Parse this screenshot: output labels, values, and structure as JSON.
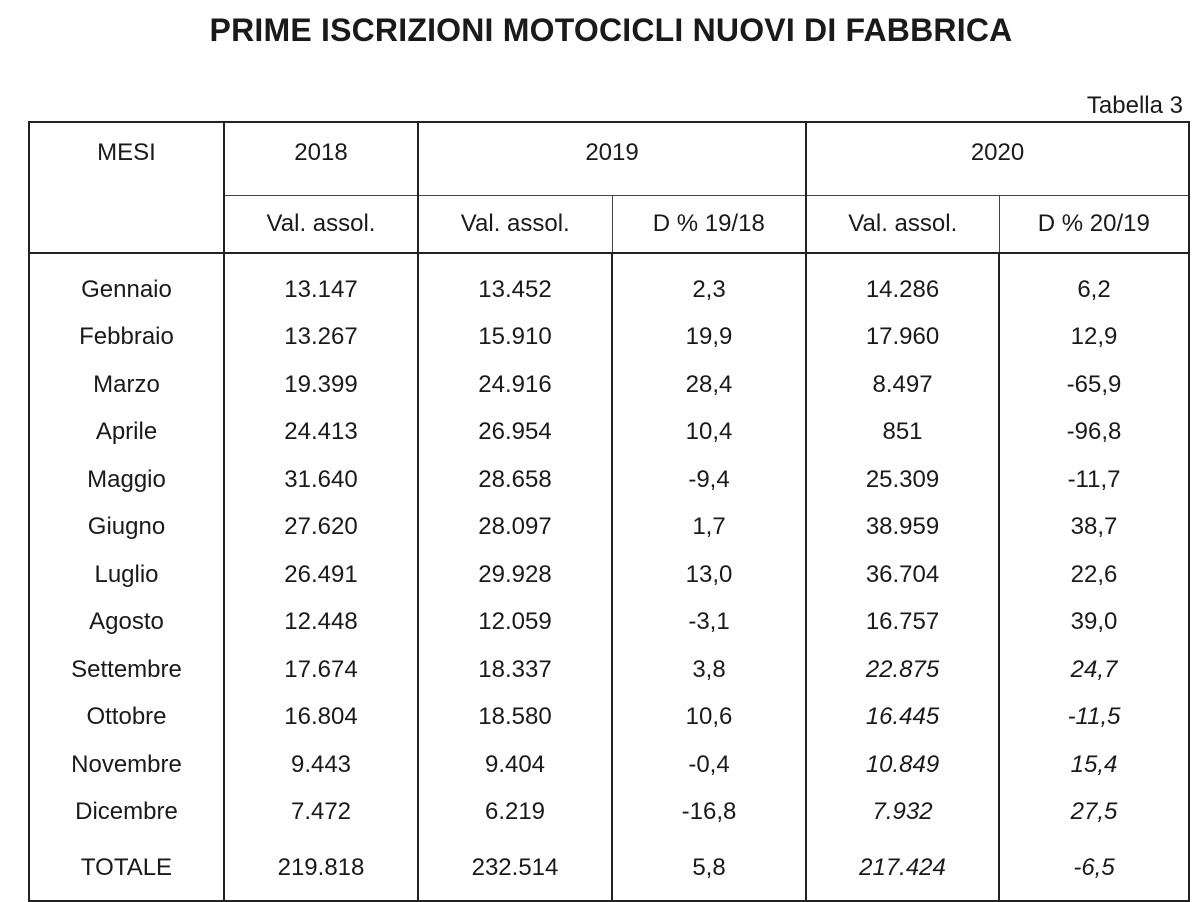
{
  "title": "PRIME ISCRIZIONI MOTOCICLI NUOVI DI FABBRICA",
  "table_label": "Tabella 3",
  "header": {
    "mesi": "MESI",
    "y2018": "2018",
    "y2019": "2019",
    "y2020": "2020",
    "val_2018": "Val. assol.",
    "val_2019": "Val. assol.",
    "delta_19_18": "D % 19/18",
    "val_2020": "Val. assol.",
    "delta_20_19": "D % 20/19"
  },
  "rows": [
    {
      "mese": "Gennaio",
      "v2018": "13.147",
      "v2019": "13.452",
      "d1918": "2,3",
      "v2020": "14.286",
      "d2019": "6,2"
    },
    {
      "mese": "Febbraio",
      "v2018": "13.267",
      "v2019": "15.910",
      "d1918": "19,9",
      "v2020": "17.960",
      "d2019": "12,9"
    },
    {
      "mese": "Marzo",
      "v2018": "19.399",
      "v2019": "24.916",
      "d1918": "28,4",
      "v2020": "8.497",
      "d2019": "-65,9"
    },
    {
      "mese": "Aprile",
      "v2018": "24.413",
      "v2019": "26.954",
      "d1918": "10,4",
      "v2020": "851",
      "d2019": "-96,8"
    },
    {
      "mese": "Maggio",
      "v2018": "31.640",
      "v2019": "28.658",
      "d1918": "-9,4",
      "v2020": "25.309",
      "d2019": "-11,7"
    },
    {
      "mese": "Giugno",
      "v2018": "27.620",
      "v2019": "28.097",
      "d1918": "1,7",
      "v2020": "38.959",
      "d2019": "38,7"
    },
    {
      "mese": "Luglio",
      "v2018": "26.491",
      "v2019": "29.928",
      "d1918": "13,0",
      "v2020": "36.704",
      "d2019": "22,6"
    },
    {
      "mese": "Agosto",
      "v2018": "12.448",
      "v2019": "12.059",
      "d1918": "-3,1",
      "v2020": "16.757",
      "d2019": "39,0"
    },
    {
      "mese": "Settembre",
      "v2018": "17.674",
      "v2019": "18.337",
      "d1918": "3,8",
      "v2020": "22.875",
      "d2019": "24,7"
    },
    {
      "mese": "Ottobre",
      "v2018": "16.804",
      "v2019": "18.580",
      "d1918": "10,6",
      "v2020": "16.445",
      "d2019": "-11,5"
    },
    {
      "mese": "Novembre",
      "v2018": "9.443",
      "v2019": "9.404",
      "d1918": "-0,4",
      "v2020": "10.849",
      "d2019": "15,4"
    },
    {
      "mese": "Dicembre",
      "v2018": "7.472",
      "v2019": "6.219",
      "d1918": "-16,8",
      "v2020": "7.932",
      "d2019": "27,5"
    }
  ],
  "total": {
    "mese": "TOTALE",
    "v2018": "219.818",
    "v2019": "232.514",
    "d1918": "5,8",
    "v2020": "217.424",
    "d2019": "-6,5"
  }
}
